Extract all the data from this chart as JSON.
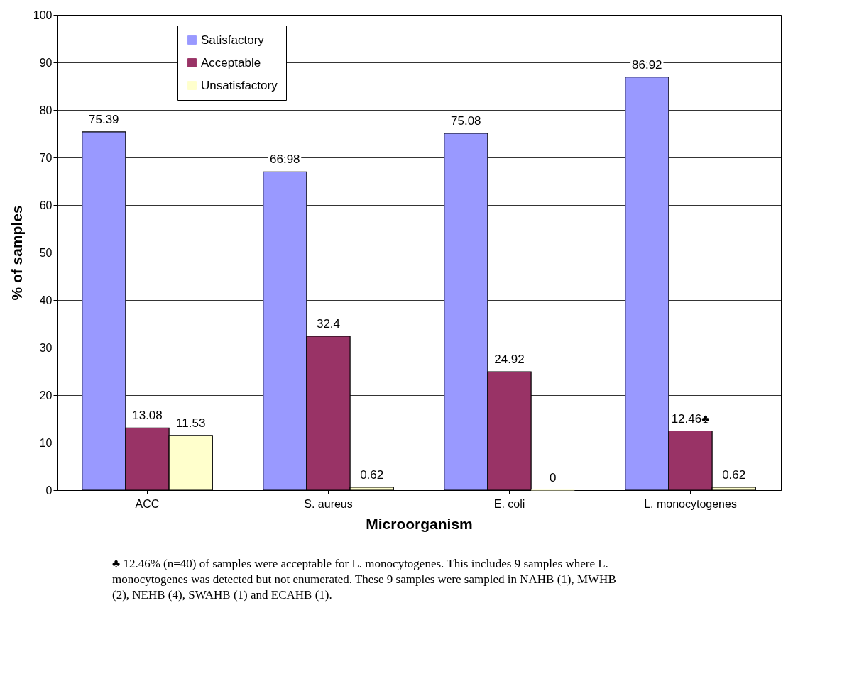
{
  "chart_data": {
    "type": "bar",
    "xlabel": "Microorganism",
    "ylabel": "% of samples",
    "categories": [
      "ACC",
      "S. aureus",
      "E. coli",
      "L. monocytogenes"
    ],
    "series": [
      {
        "name": "Satisfactory",
        "color": "#9999ff",
        "values": [
          75.39,
          66.98,
          75.08,
          86.92
        ],
        "value_labels": [
          "75.39",
          "66.98",
          "75.08",
          "86.92"
        ]
      },
      {
        "name": "Acceptable",
        "color": "#993366",
        "values": [
          13.08,
          32.4,
          24.92,
          12.46
        ],
        "value_labels": [
          "13.08",
          "32.4",
          "24.92",
          "12.46♣"
        ]
      },
      {
        "name": "Unsatisfactory",
        "color": "#ffffcc",
        "values": [
          11.53,
          0.62,
          0,
          0.62
        ],
        "value_labels": [
          "11.53",
          "0.62",
          "0",
          "0.62"
        ]
      }
    ],
    "ylim": [
      0,
      100
    ],
    "yticks": [
      0,
      10,
      20,
      30,
      40,
      50,
      60,
      70,
      80,
      90,
      100
    ],
    "grid": "y",
    "legend": "top left",
    "annotations": [
      "♣ 12.46% (n=40) of samples were acceptable for L. monocytogenes. This includes 9 samples where L. monocytogenes was detected but not enumerated. These 9 samples were sampled in NAHB (1), MWHB (2), NEHB (4), SWAHB (1) and ECAHB (1)."
    ]
  }
}
